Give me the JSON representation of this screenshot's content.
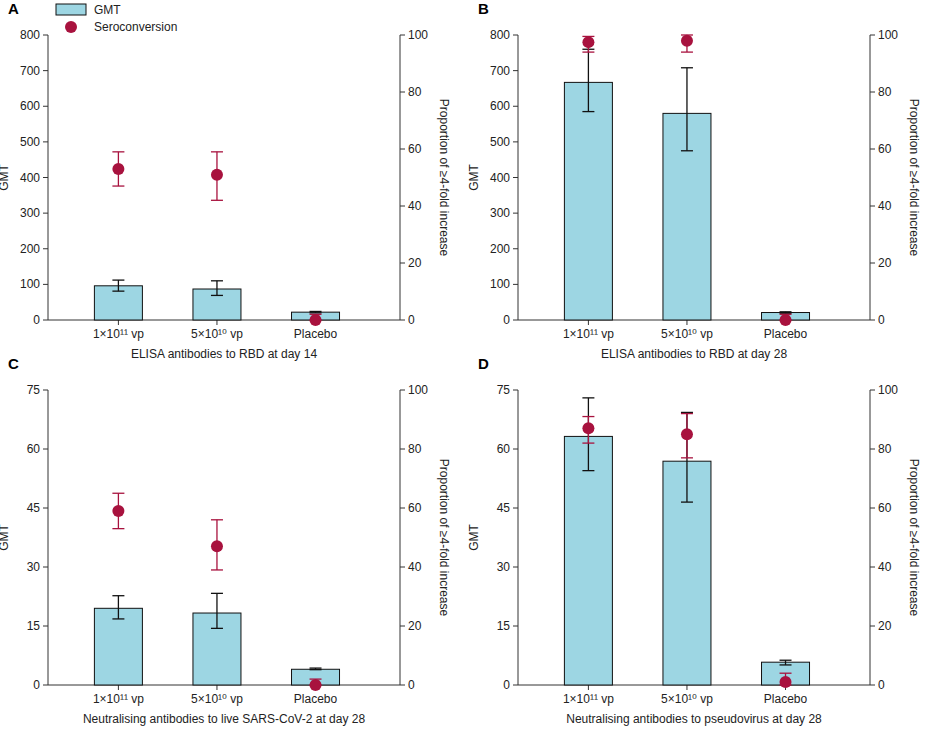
{
  "chart_data": [
    {
      "type": "bar",
      "title": "A",
      "xlabel": "ELISA antibodies to RBD at day 14",
      "ylabel": "GMT",
      "y2label": "Proportion of ≥4-fold increase",
      "categories": [
        "1×10¹¹ vp",
        "5×10¹⁰ vp",
        "Placebo"
      ],
      "ylim": [
        0,
        800
      ],
      "yticks": [
        0,
        100,
        200,
        300,
        400,
        500,
        600,
        700,
        800
      ],
      "y2lim": [
        0,
        100
      ],
      "y2ticks": [
        0,
        20,
        40,
        60,
        80,
        100
      ],
      "grid": false,
      "legend": "upper left",
      "series": [
        {
          "name": "GMT",
          "type": "bar",
          "color": "#9dd6e3",
          "values": [
            96,
            87,
            22
          ],
          "ci": [
            [
              81,
              112
            ],
            [
              69,
              110
            ],
            [
              20,
              24
            ]
          ]
        },
        {
          "name": "Seroconversion",
          "type": "scatter",
          "axis": "y2",
          "marker": "circle",
          "color": "#a8123e",
          "values": [
            53,
            51,
            0
          ],
          "ci": [
            [
              47,
              59
            ],
            [
              42,
              59
            ],
            [
              0,
              2
            ]
          ]
        }
      ]
    },
    {
      "type": "bar",
      "title": "B",
      "xlabel": "ELISA antibodies to RBD at day 28",
      "ylabel": "GMT",
      "y2label": "Proportion of ≥4-fold increase",
      "categories": [
        "1×10¹¹ vp",
        "5×10¹⁰ vp",
        "Placebo"
      ],
      "ylim": [
        0,
        800
      ],
      "yticks": [
        0,
        100,
        200,
        300,
        400,
        500,
        600,
        700,
        800
      ],
      "y2lim": [
        0,
        100
      ],
      "y2ticks": [
        0,
        20,
        40,
        60,
        80,
        100
      ],
      "grid": false,
      "series": [
        {
          "type": "bar",
          "color": "#9dd6e3",
          "values": [
            667,
            580,
            21
          ],
          "ci": [
            [
              585,
              760
            ],
            [
              475,
              708
            ],
            [
              19,
              23
            ]
          ]
        },
        {
          "type": "scatter",
          "axis": "y2",
          "marker": "circle",
          "color": "#a8123e",
          "values": [
            97.5,
            98,
            0
          ],
          "ci": [
            [
              94,
              99.5
            ],
            [
              94,
              100
            ],
            [
              0,
              2
            ]
          ]
        }
      ]
    },
    {
      "type": "bar",
      "title": "C",
      "xlabel": "Neutralising antibodies to live SARS-CoV-2 at day 28",
      "ylabel": "GMT",
      "y2label": "Proportion of ≥4-fold increase",
      "categories": [
        "1×10¹¹ vp",
        "5×10¹⁰ vp",
        "Placebo"
      ],
      "ylim": [
        0,
        75
      ],
      "yticks": [
        0,
        15,
        30,
        45,
        60,
        75
      ],
      "y2lim": [
        0,
        100
      ],
      "y2ticks": [
        0,
        20,
        40,
        60,
        80,
        100
      ],
      "grid": false,
      "series": [
        {
          "type": "bar",
          "color": "#9dd6e3",
          "values": [
            19.5,
            18.3,
            4.0
          ],
          "ci": [
            [
              16.8,
              22.7
            ],
            [
              14.4,
              23.3
            ],
            [
              3.9,
              4.3
            ]
          ]
        },
        {
          "type": "scatter",
          "axis": "y2",
          "marker": "circle",
          "color": "#a8123e",
          "values": [
            59,
            47,
            0
          ],
          "ci": [
            [
              53,
              65
            ],
            [
              39,
              56
            ],
            [
              0,
              2
            ]
          ]
        }
      ]
    },
    {
      "type": "bar",
      "title": "D",
      "xlabel": "Neutralising antibodies to pseudovirus at day 28",
      "ylabel": "GMT",
      "y2label": "Proportion of ≥4-fold increase",
      "categories": [
        "1×10¹¹ vp",
        "5×10¹⁰ vp",
        "Placebo"
      ],
      "ylim": [
        0,
        75
      ],
      "yticks": [
        0,
        15,
        30,
        45,
        60,
        75
      ],
      "y2lim": [
        0,
        100
      ],
      "y2ticks": [
        0,
        20,
        40,
        60,
        80,
        100
      ],
      "grid": false,
      "series": [
        {
          "type": "bar",
          "color": "#9dd6e3",
          "values": [
            63.2,
            56.9,
            5.8
          ],
          "ci": [
            [
              54.5,
              73
            ],
            [
              46.5,
              69.3
            ],
            [
              5.1,
              6.3
            ]
          ]
        },
        {
          "type": "scatter",
          "axis": "y2",
          "marker": "circle",
          "color": "#a8123e",
          "values": [
            87,
            85,
            1
          ],
          "ci": [
            [
              82,
              91
            ],
            [
              77,
              92
            ],
            [
              0,
              4
            ]
          ]
        }
      ]
    }
  ]
}
